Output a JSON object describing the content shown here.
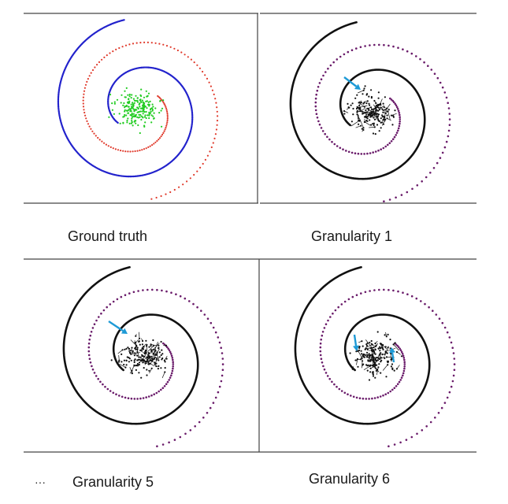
{
  "captions": {
    "ground_truth": "Ground truth",
    "granularity_1": "Granularity 1",
    "granularity_5": "Granularity 5",
    "granularity_6": "Granularity 6",
    "ellipsis": "···"
  },
  "colors": {
    "outer_arm_truth": "#2222cc",
    "inner_arm_truth": "#e0392b",
    "cluster_truth": "#22cc22",
    "outer_arm_pred": "#111111",
    "inner_arm_pred": "#c850c8",
    "cluster_pred": "#111111",
    "arrow": "#1e9ad6",
    "border": "#444444"
  },
  "panels": [
    {
      "id": "ground-truth",
      "cluster_points": 220,
      "arrows": 0
    },
    {
      "id": "granularity-1",
      "cluster_points": 180,
      "arrows": 1
    },
    {
      "id": "granularity-5",
      "cluster_points": 180,
      "arrows": 1
    },
    {
      "id": "granularity-6",
      "cluster_points": 180,
      "arrows": 2
    }
  ]
}
